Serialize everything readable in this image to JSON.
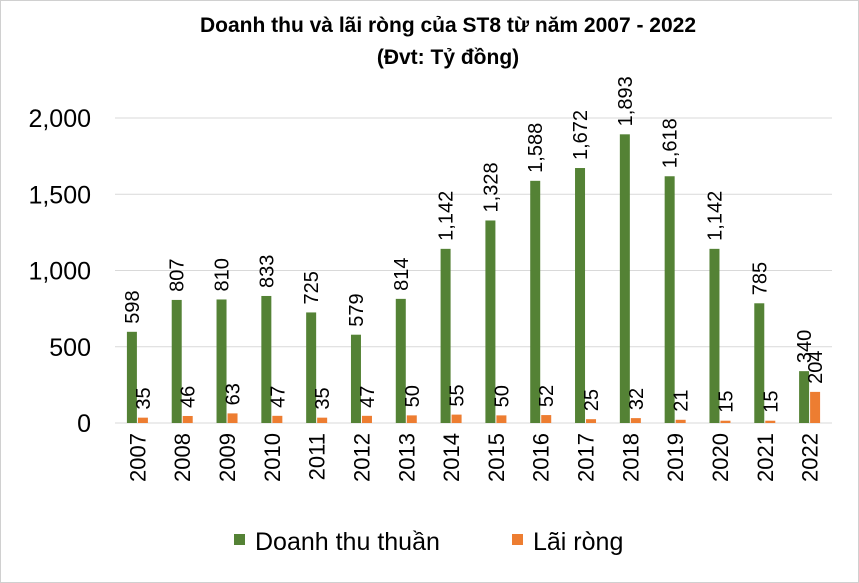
{
  "chart_data": {
    "type": "bar",
    "title": "Doanh thu và lãi ròng của ST8 từ năm 2007 - 2022",
    "subtitle": "(Đvt: Tỷ đồng)",
    "categories": [
      "2007",
      "2008",
      "2009",
      "2010",
      "2011",
      "2012",
      "2013",
      "2014",
      "2015",
      "2016",
      "2017",
      "2018",
      "2019",
      "2020",
      "2021",
      "2022"
    ],
    "series": [
      {
        "name": "Doanh thu thuần",
        "color": "#548235",
        "values": [
          598,
          807,
          810,
          833,
          725,
          579,
          814,
          1142,
          1328,
          1588,
          1672,
          1893,
          1618,
          1142,
          785,
          340
        ],
        "labels": [
          "598",
          "807",
          "810",
          "833",
          "725",
          "579",
          "814",
          "1,142",
          "1,328",
          "1,588",
          "1,672",
          "1,893",
          "1,618",
          "1,142",
          "785",
          "340"
        ]
      },
      {
        "name": "Lãi ròng",
        "color": "#ed7d31",
        "values": [
          35,
          46,
          63,
          47,
          35,
          47,
          50,
          55,
          50,
          52,
          25,
          32,
          21,
          15,
          15,
          204
        ],
        "labels": [
          "35",
          "46",
          "63",
          "47",
          "35",
          "47",
          "50",
          "55",
          "50",
          "52",
          "25",
          "32",
          "21",
          "15",
          "15",
          "204"
        ]
      }
    ],
    "yticks": [
      0,
      500,
      1000,
      1500,
      2000
    ],
    "ytick_labels": [
      "0",
      "500",
      "1,000",
      "1,500",
      "2,000"
    ],
    "ylim": [
      0,
      2000
    ],
    "grid": true,
    "legend_position": "bottom"
  }
}
